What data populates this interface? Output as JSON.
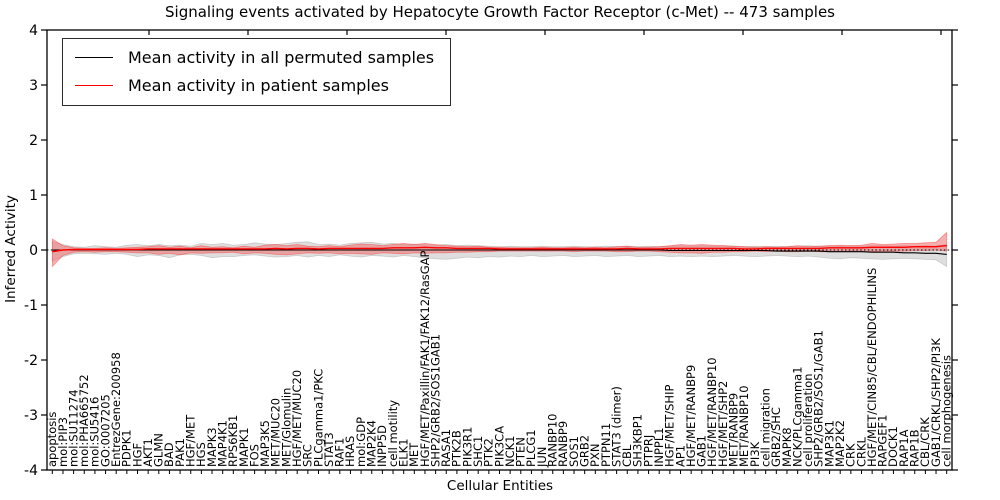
{
  "colors": {
    "permuted_line": "#000000",
    "patient_line": "#ff0000",
    "permuted_band": "#c8c8c8",
    "patient_band": "#f07070",
    "axis": "#000000"
  },
  "chart_data": {
    "type": "line",
    "title": "Signaling events activated by Hepatocyte Growth Factor Receptor (c-Met) -- 473 samples",
    "xlabel": "Cellular Entities",
    "ylabel": "Inferred Activity",
    "ylim": [
      -4,
      4
    ],
    "yticks": [
      -4,
      -3,
      -2,
      -1,
      0,
      1,
      2,
      3,
      4
    ],
    "grid": false,
    "legend_position": "upper left",
    "zero_line": {
      "style": "dotted",
      "value": 0
    },
    "categories": [
      "apoptosis",
      "mol:PIP3",
      "mol:SU11274",
      "mol:PHA665752",
      "mol:SU5416",
      "GO:0007205",
      "EntrezGene:200958",
      "PDPK1",
      "HGF",
      "AKT1",
      "GLMN",
      "BAD",
      "PAK1",
      "HGF/MET",
      "HGS",
      "MAPK3",
      "MAP4K1",
      "RPS6KB1",
      "MAPK1",
      "FOS",
      "MAP3K5",
      "MET/MUC20",
      "MET/Glomulin",
      "HGF/MET/MUC20",
      "SRC",
      "PLCgamma1/PKC",
      "STAT3",
      "RAF1",
      "HRAS",
      "mol:GDP",
      "MAP2K4",
      "INPP5D",
      "cell motility",
      "ELK1",
      "MET",
      "HGF/MET/Paxillin/FAK1/FAK12/RasGAP",
      "SHP2/GRB2/SOS1GAB1",
      "RASA1",
      "PTK2B",
      "PIK3R1",
      "SHC1",
      "PTK2",
      "PIK3CA",
      "NCK1",
      "PTEN",
      "PLCG1",
      "JUN",
      "RANBP10",
      "RANBP9",
      "SOS1",
      "GRB2",
      "PXN",
      "PTPN11",
      "STAT3 (dimer)",
      "CBL",
      "SH3KBP1",
      "PTPRJ",
      "INPPL1",
      "HGF/MET/SHIP",
      "AP1",
      "HGF/MET/RANBP9",
      "GAB1",
      "HGF/MET/RANBP10",
      "HGF/MET/SHP2",
      "MET/RANBP9",
      "MET/RANBP10",
      "PI3K",
      "cell migration",
      "GRB2/SHC",
      "MAPK8",
      "NCK/PLCgamma1",
      "cell proliferation",
      "SHP2/GRB2/SOS1/GAB1",
      "MAP3K1",
      "MAP2K2",
      "CRK",
      "CRKL",
      "HGF/MET/CIN85/CBL/ENDOPHILINS",
      "RAPGEF1",
      "DOCK1",
      "RAP1A",
      "RAP1B",
      "CBL/CRK",
      "GAB1/CRKL/SHP2/PI3K",
      "cell morphogenesis"
    ],
    "series": [
      {
        "name": "Mean activity in all permuted samples",
        "color": "#000000",
        "values": [
          0,
          0,
          0,
          0,
          0,
          0,
          0,
          0,
          0,
          0,
          0,
          0,
          0,
          0,
          0,
          0,
          0,
          0,
          0,
          0,
          0,
          0,
          0,
          0,
          0,
          0,
          0,
          0,
          0,
          0,
          0,
          0,
          0,
          0,
          0,
          0,
          0,
          0,
          0,
          0,
          0,
          0,
          0,
          0,
          0,
          0,
          0,
          0,
          0,
          0,
          0,
          0,
          0,
          0,
          0,
          0,
          0,
          0,
          -0.01,
          -0.01,
          -0.01,
          -0.01,
          -0.01,
          -0.01,
          -0.01,
          -0.01,
          -0.01,
          -0.01,
          -0.02,
          -0.02,
          -0.02,
          -0.02,
          -0.02,
          -0.03,
          -0.03,
          -0.03,
          -0.03,
          -0.04,
          -0.04,
          -0.04,
          -0.05,
          -0.05,
          -0.06,
          -0.06,
          -0.08
        ],
        "band_upper": [
          0.15,
          0.1,
          0.06,
          0.05,
          0.08,
          0.06,
          0.05,
          0.09,
          0.1,
          0.08,
          0.1,
          0.08,
          0.09,
          0.07,
          0.12,
          0.1,
          0.12,
          0.09,
          0.1,
          0.13,
          0.11,
          0.1,
          0.12,
          0.14,
          0.15,
          0.1,
          0.11,
          0.09,
          0.12,
          0.13,
          0.14,
          0.11,
          0.12,
          0.1,
          0.11,
          0.1,
          0.09,
          0.1,
          0.08,
          0.09,
          0.08,
          0.07,
          0.06,
          0.07,
          0.06,
          0.06,
          0.07,
          0.06,
          0.06,
          0.07,
          0.06,
          0.06,
          0.07,
          0.06,
          0.07,
          0.06,
          0.07,
          0.06,
          0.07,
          0.08,
          0.07,
          0.08,
          0.07,
          0.08,
          0.07,
          0.06,
          0.07,
          0.06,
          0.07,
          0.06,
          0.07,
          0.08,
          0.07,
          0.08,
          0.07,
          0.08,
          0.07,
          0.08,
          0.08,
          0.07,
          0.08,
          0.07,
          0.08,
          0.07,
          0.1
        ],
        "band_lower": [
          -0.2,
          -0.12,
          -0.07,
          -0.06,
          -0.07,
          -0.08,
          -0.06,
          -0.08,
          -0.12,
          -0.09,
          -0.1,
          -0.14,
          -0.09,
          -0.08,
          -0.1,
          -0.14,
          -0.12,
          -0.12,
          -0.1,
          -0.09,
          -0.11,
          -0.13,
          -0.12,
          -0.1,
          -0.13,
          -0.1,
          -0.12,
          -0.09,
          -0.11,
          -0.13,
          -0.1,
          -0.11,
          -0.13,
          -0.1,
          -0.12,
          -0.14,
          -0.16,
          -0.17,
          -0.15,
          -0.13,
          -0.14,
          -0.12,
          -0.13,
          -0.11,
          -0.12,
          -0.1,
          -0.12,
          -0.11,
          -0.1,
          -0.12,
          -0.11,
          -0.1,
          -0.12,
          -0.11,
          -0.1,
          -0.12,
          -0.11,
          -0.1,
          -0.12,
          -0.11,
          -0.12,
          -0.11,
          -0.12,
          -0.11,
          -0.1,
          -0.11,
          -0.12,
          -0.11,
          -0.1,
          -0.11,
          -0.12,
          -0.11,
          -0.13,
          -0.15,
          -0.16,
          -0.14,
          -0.15,
          -0.16,
          -0.17,
          -0.16,
          -0.15,
          -0.16,
          -0.17,
          -0.18,
          -0.3
        ],
        "band_color": "#c8c8c8"
      },
      {
        "name": "Mean activity in patient samples",
        "color": "#ff0000",
        "values": [
          -0.03,
          0,
          0.01,
          0.01,
          0.01,
          0.01,
          0.01,
          0.01,
          0.01,
          0.02,
          0.02,
          0.02,
          0.02,
          0.02,
          0.02,
          0.02,
          0.02,
          0.02,
          0.02,
          0.02,
          0.02,
          0.03,
          0.02,
          0.03,
          0.03,
          0.02,
          0.03,
          0.03,
          0.03,
          0.03,
          0.03,
          0.03,
          0.04,
          0.04,
          0.04,
          0.05,
          0.04,
          0.04,
          0.03,
          0.03,
          0.03,
          0.03,
          0.02,
          0.02,
          0.02,
          0.02,
          0.02,
          0.02,
          0.02,
          0.02,
          0.02,
          0.02,
          0.02,
          0.02,
          0.03,
          0.02,
          0.02,
          0.02,
          0.03,
          0.03,
          0.03,
          0.03,
          0.03,
          0.03,
          0.03,
          0.02,
          0.02,
          0.03,
          0.03,
          0.03,
          0.03,
          0.03,
          0.03,
          0.04,
          0.04,
          0.04,
          0.04,
          0.05,
          0.05,
          0.05,
          0.05,
          0.06,
          0.06,
          0.06,
          0.08
        ],
        "band_upper": [
          0.2,
          0.08,
          0.04,
          0.03,
          0.03,
          0.04,
          0.03,
          0.04,
          0.05,
          0.06,
          0.08,
          0.05,
          0.07,
          0.04,
          0.08,
          0.05,
          0.06,
          0.04,
          0.07,
          0.05,
          0.09,
          0.1,
          0.08,
          0.1,
          0.07,
          0.06,
          0.08,
          0.06,
          0.09,
          0.11,
          0.1,
          0.08,
          0.1,
          0.12,
          0.1,
          0.12,
          0.1,
          0.08,
          0.07,
          0.06,
          0.07,
          0.05,
          0.05,
          0.04,
          0.04,
          0.04,
          0.05,
          0.04,
          0.04,
          0.05,
          0.04,
          0.05,
          0.04,
          0.06,
          0.07,
          0.05,
          0.05,
          0.06,
          0.08,
          0.1,
          0.09,
          0.1,
          0.09,
          0.08,
          0.07,
          0.06,
          0.05,
          0.06,
          0.05,
          0.06,
          0.08,
          0.06,
          0.07,
          0.08,
          0.09,
          0.08,
          0.09,
          0.12,
          0.1,
          0.11,
          0.12,
          0.12,
          0.13,
          0.14,
          0.32
        ],
        "band_lower": [
          -0.3,
          -0.1,
          -0.04,
          -0.03,
          -0.04,
          -0.03,
          -0.03,
          -0.04,
          -0.05,
          -0.05,
          -0.08,
          -0.06,
          -0.09,
          -0.05,
          -0.06,
          -0.05,
          -0.05,
          -0.04,
          -0.07,
          -0.05,
          -0.06,
          -0.08,
          -0.09,
          -0.07,
          -0.05,
          -0.06,
          -0.05,
          -0.07,
          -0.06,
          -0.07,
          -0.08,
          -0.05,
          -0.06,
          -0.07,
          -0.05,
          -0.06,
          -0.05,
          -0.05,
          -0.04,
          -0.04,
          -0.03,
          -0.03,
          -0.02,
          -0.02,
          -0.02,
          -0.02,
          -0.02,
          -0.02,
          -0.02,
          -0.03,
          -0.02,
          -0.02,
          -0.02,
          -0.03,
          -0.03,
          -0.02,
          -0.02,
          -0.03,
          -0.04,
          -0.05,
          -0.05,
          -0.06,
          -0.04,
          -0.04,
          -0.03,
          -0.03,
          -0.02,
          -0.03,
          -0.02,
          -0.03,
          -0.03,
          -0.02,
          -0.03,
          -0.03,
          -0.03,
          -0.02,
          -0.03,
          -0.03,
          -0.02,
          -0.02,
          -0.02,
          -0.01,
          -0.01,
          0.0,
          -0.02
        ],
        "band_color": "#f07070"
      }
    ]
  }
}
